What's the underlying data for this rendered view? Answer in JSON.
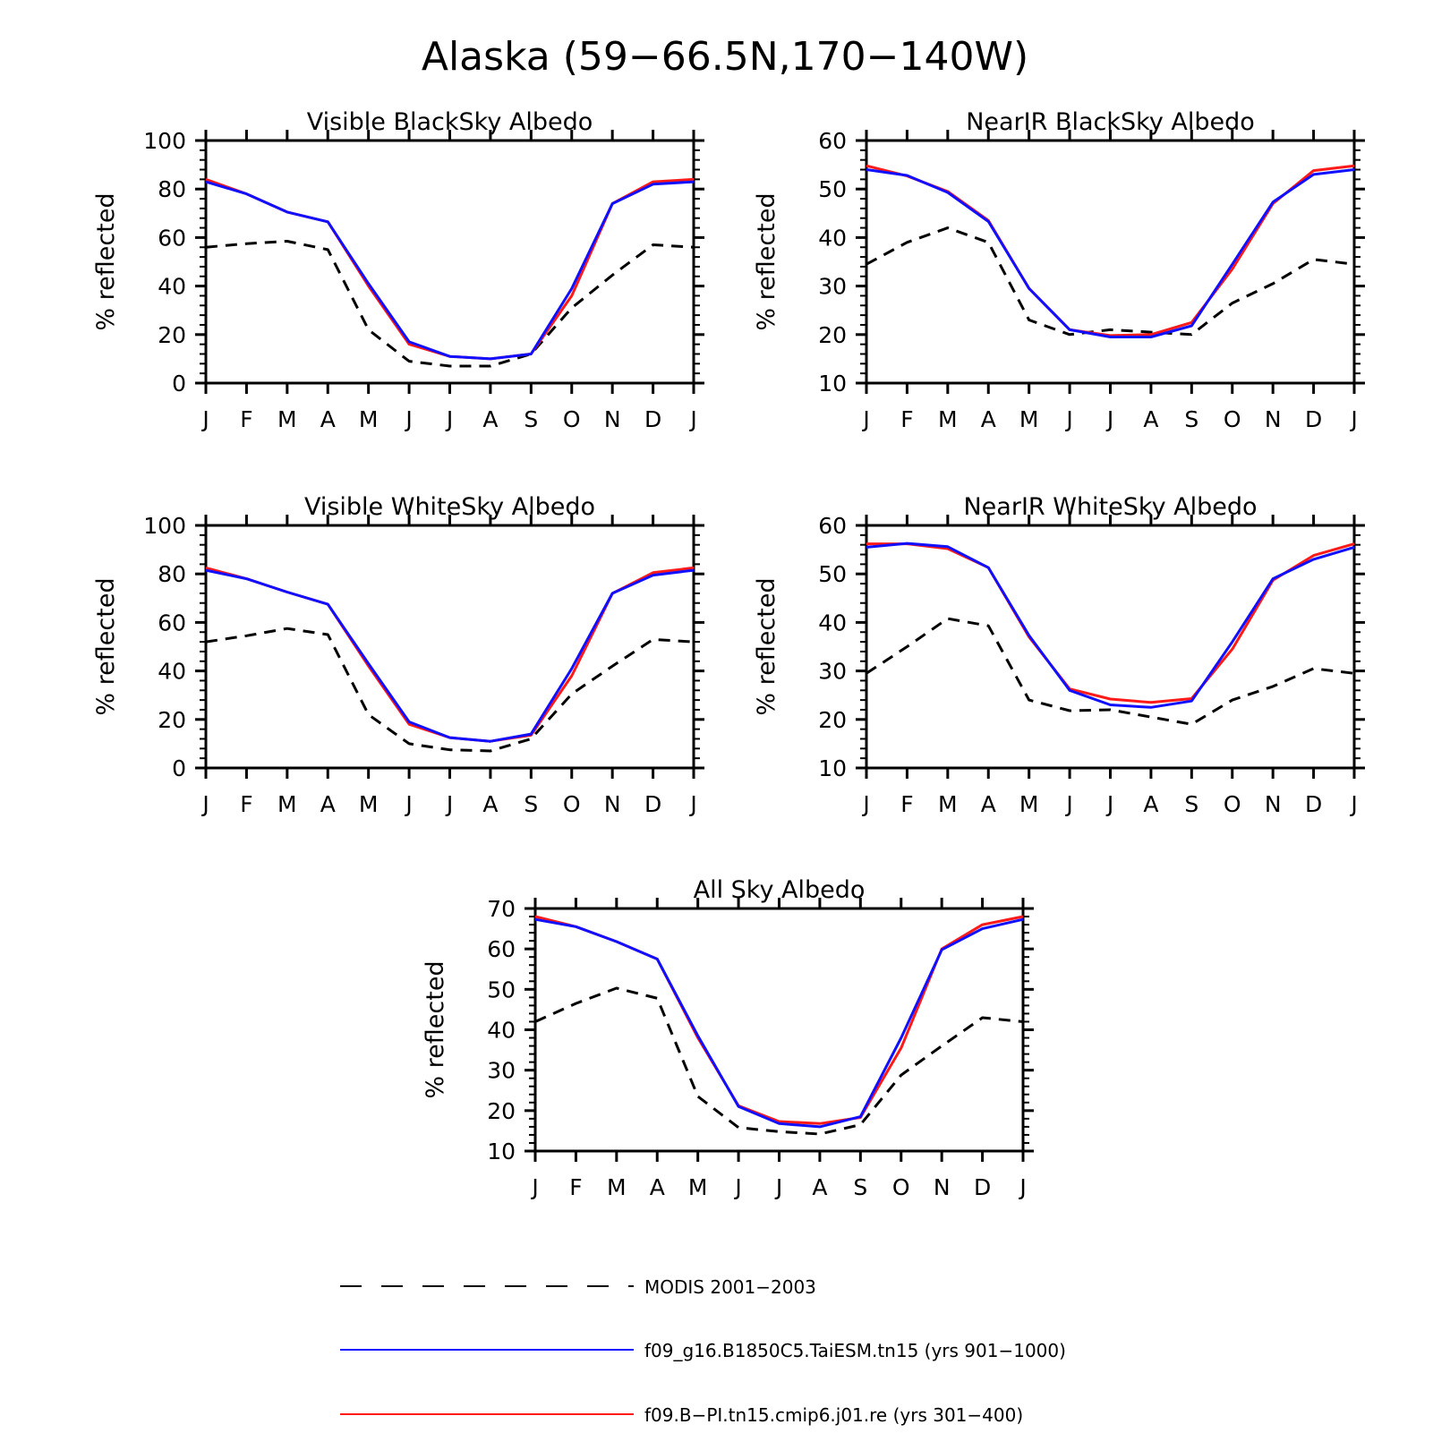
{
  "figure": {
    "title": "Alaska (59−66.5N,170−140W)"
  },
  "months": [
    "J",
    "F",
    "M",
    "A",
    "M",
    "J",
    "J",
    "A",
    "S",
    "O",
    "N",
    "D",
    "J"
  ],
  "ylabel": "% reflected",
  "colors": {
    "modis": "#000000",
    "taiesm": "#1010ff",
    "cmip6": "#ff1a1a"
  },
  "legend": [
    {
      "key": "modis",
      "label": "MODIS 2001−2003",
      "style": "dashed"
    },
    {
      "key": "taiesm",
      "label": "f09_g16.B1850C5.TaiESM.tn15 (yrs 901−1000)",
      "style": "solid"
    },
    {
      "key": "cmip6",
      "label": "f09.B−PI.tn15.cmip6.j01.re (yrs 301−400)",
      "style": "solid"
    }
  ],
  "chart_data": [
    {
      "type": "line",
      "title": "Visible BlackSky Albedo",
      "ylabel": "% reflected",
      "ylim": [
        0,
        100
      ],
      "yticks": [
        0,
        20,
        40,
        60,
        80,
        100
      ],
      "x": [
        "J",
        "F",
        "M",
        "A",
        "M",
        "J",
        "J",
        "A",
        "S",
        "O",
        "N",
        "D",
        "J"
      ],
      "series": [
        {
          "key": "modis",
          "values": [
            56,
            57.5,
            58.5,
            55,
            22,
            9,
            7,
            7,
            12,
            31,
            44.5,
            57,
            56
          ]
        },
        {
          "key": "taiesm",
          "values": [
            83,
            78,
            70.5,
            66.5,
            41,
            17,
            11,
            10,
            12,
            39,
            74,
            82,
            83
          ]
        },
        {
          "key": "cmip6",
          "values": [
            84,
            78,
            70.5,
            66.5,
            40,
            16,
            11,
            10,
            12,
            36,
            74,
            83,
            84
          ]
        }
      ]
    },
    {
      "type": "line",
      "title": "NearIR BlackSky Albedo",
      "ylabel": "% reflected",
      "ylim": [
        10,
        60
      ],
      "yticks": [
        10,
        20,
        30,
        40,
        50,
        60
      ],
      "x": [
        "J",
        "F",
        "M",
        "A",
        "M",
        "J",
        "J",
        "A",
        "S",
        "O",
        "N",
        "D",
        "J"
      ],
      "series": [
        {
          "key": "modis",
          "values": [
            34.5,
            39,
            42,
            39,
            23,
            20,
            21,
            20.5,
            20,
            26.5,
            30.5,
            35.5,
            34.5
          ]
        },
        {
          "key": "taiesm",
          "values": [
            54,
            52.8,
            49.3,
            43.3,
            29.5,
            21,
            19.5,
            19.5,
            21.8,
            34.5,
            47.3,
            53,
            54
          ]
        },
        {
          "key": "cmip6",
          "values": [
            54.8,
            52.7,
            49.5,
            43.5,
            29.5,
            21,
            19.8,
            20,
            22.5,
            33.5,
            47,
            53.8,
            54.8
          ]
        }
      ]
    },
    {
      "type": "line",
      "title": "Visible WhiteSky Albedo",
      "ylabel": "% reflected",
      "ylim": [
        0,
        100
      ],
      "yticks": [
        0,
        20,
        40,
        60,
        80,
        100
      ],
      "x": [
        "J",
        "F",
        "M",
        "A",
        "M",
        "J",
        "J",
        "A",
        "S",
        "O",
        "N",
        "D",
        "J"
      ],
      "series": [
        {
          "key": "modis",
          "values": [
            52,
            54.5,
            57.5,
            55,
            22,
            10,
            7.5,
            7,
            12,
            30.5,
            42,
            53,
            52
          ]
        },
        {
          "key": "taiesm",
          "values": [
            81.5,
            78,
            72.5,
            67.5,
            43,
            19,
            12.5,
            11,
            14,
            41,
            72,
            79.5,
            81.5
          ]
        },
        {
          "key": "cmip6",
          "values": [
            82.5,
            78,
            72.5,
            67.5,
            42,
            18,
            12.5,
            11,
            13.5,
            38,
            72,
            80.5,
            82.5
          ]
        }
      ]
    },
    {
      "type": "line",
      "title": "NearIR WhiteSky Albedo",
      "ylabel": "% reflected",
      "ylim": [
        10,
        60
      ],
      "yticks": [
        10,
        20,
        30,
        40,
        50,
        60
      ],
      "x": [
        "J",
        "F",
        "M",
        "A",
        "M",
        "J",
        "J",
        "A",
        "S",
        "O",
        "N",
        "D",
        "J"
      ],
      "series": [
        {
          "key": "modis",
          "values": [
            29.5,
            35,
            40.8,
            39.3,
            24,
            21.8,
            22,
            20.5,
            19,
            24,
            26.8,
            30.5,
            29.5
          ]
        },
        {
          "key": "taiesm",
          "values": [
            55.5,
            56.3,
            55.6,
            51.3,
            37.3,
            26,
            23,
            22.5,
            23.8,
            36,
            49,
            53,
            55.5
          ]
        },
        {
          "key": "cmip6",
          "values": [
            56.2,
            56.2,
            55.2,
            51.3,
            37,
            26.3,
            24.2,
            23.5,
            24.3,
            34.5,
            48.7,
            53.8,
            56.2
          ]
        }
      ]
    },
    {
      "type": "line",
      "title": "All Sky Albedo",
      "ylabel": "% reflected",
      "ylim": [
        10,
        70
      ],
      "yticks": [
        10,
        20,
        30,
        40,
        50,
        60,
        70
      ],
      "x": [
        "J",
        "F",
        "M",
        "A",
        "M",
        "J",
        "J",
        "A",
        "S",
        "O",
        "N",
        "D",
        "J"
      ],
      "series": [
        {
          "key": "modis",
          "values": [
            42,
            46.5,
            50.3,
            47.8,
            23.5,
            15.8,
            14.8,
            14.2,
            16.5,
            28.8,
            36,
            43,
            42
          ]
        },
        {
          "key": "taiesm",
          "values": [
            67.3,
            65.5,
            61.8,
            57.5,
            38.5,
            21,
            16.8,
            16,
            18.5,
            38,
            59.8,
            65,
            67.3
          ]
        },
        {
          "key": "cmip6",
          "values": [
            68,
            65.5,
            61.8,
            57.5,
            38,
            21.2,
            17.3,
            16.8,
            18.3,
            35.5,
            60,
            66,
            68
          ]
        }
      ]
    }
  ]
}
